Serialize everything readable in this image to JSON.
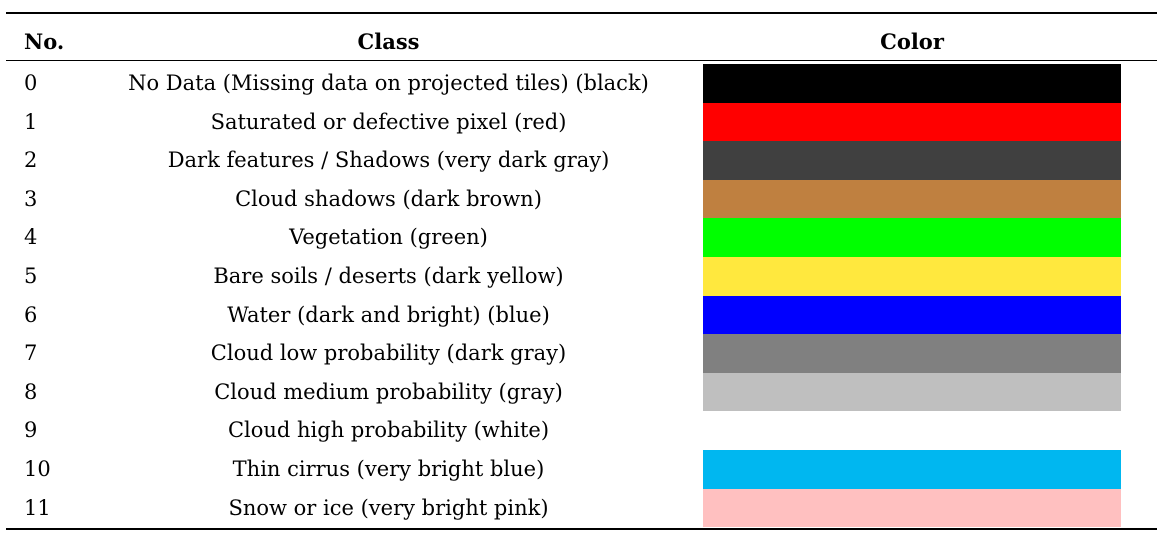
{
  "table": {
    "headers": {
      "no": "No.",
      "class": "Class",
      "color": "Color"
    },
    "rows": [
      {
        "no": "0",
        "class": "No Data (Missing data on projected tiles) (black)",
        "color": "#000000"
      },
      {
        "no": "1",
        "class": "Saturated or defective pixel (red)",
        "color": "#ff0000"
      },
      {
        "no": "2",
        "class": "Dark features / Shadows (very dark gray)",
        "color": "#404040"
      },
      {
        "no": "3",
        "class": "Cloud shadows (dark brown)",
        "color": "#bf8040"
      },
      {
        "no": "4",
        "class": "Vegetation (green)",
        "color": "#00ff00"
      },
      {
        "no": "5",
        "class": "Bare soils / deserts (dark yellow)",
        "color": "#ffe83e"
      },
      {
        "no": "6",
        "class": "Water (dark and bright) (blue)",
        "color": "#0000ff"
      },
      {
        "no": "7",
        "class": "Cloud low probability (dark gray)",
        "color": "#808080"
      },
      {
        "no": "8",
        "class": "Cloud medium probability (gray)",
        "color": "#bfbfbf"
      },
      {
        "no": "9",
        "class": "Cloud high probability (white)",
        "color": "#ffffff"
      },
      {
        "no": "10",
        "class": "Thin cirrus (very bright blue)",
        "color": "#00b7f0"
      },
      {
        "no": "11",
        "class": "Snow or ice (very bright pink)",
        "color": "#ffc0c0"
      }
    ]
  }
}
